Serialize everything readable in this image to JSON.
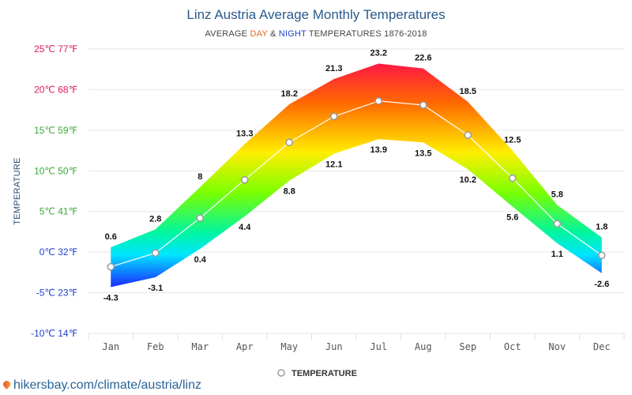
{
  "colors": {
    "day": "#e8661c",
    "night": "#1f3fcf",
    "title": "#2a5a8c",
    "grid": "#e6e6e6",
    "avg_line": "#ffffff"
  },
  "legend": {
    "label": "TEMPERATURE",
    "position": "bottom"
  },
  "credit": {
    "text": "hikersbay.com/climate/austria/linz",
    "icon": "location-pin-icon"
  },
  "chart_data": {
    "type": "area",
    "title": "Linz Austria Average Monthly Temperatures",
    "subtitle": {
      "prefix": "AVERAGE ",
      "day_word": "DAY",
      "middle": " & ",
      "night_word": "NIGHT",
      "suffix": " TEMPERATURES 1876-2018"
    },
    "ylabel": "TEMPERATURE",
    "xlabel": "",
    "ylim": [
      -10,
      25
    ],
    "grid": true,
    "y_ticks": [
      {
        "value": 25,
        "label": "25℃ 77℉",
        "color": "#e0185a"
      },
      {
        "value": 20,
        "label": "20℃ 68℉",
        "color": "#e0185a"
      },
      {
        "value": 15,
        "label": "15℃ 59℉",
        "color": "#3aaa35"
      },
      {
        "value": 10,
        "label": "10℃ 50℉",
        "color": "#3aaa35"
      },
      {
        "value": 5,
        "label": "5℃ 41℉",
        "color": "#3aaa35"
      },
      {
        "value": 0,
        "label": "0℃ 32℉",
        "color": "#1f3fcf"
      },
      {
        "value": -5,
        "label": "-5℃ 23℉",
        "color": "#1f3fcf"
      },
      {
        "value": -10,
        "label": "-10℃ 14℉",
        "color": "#1f3fcf"
      }
    ],
    "categories": [
      "Jan",
      "Feb",
      "Mar",
      "Apr",
      "May",
      "Jun",
      "Jul",
      "Aug",
      "Sep",
      "Oct",
      "Nov",
      "Dec"
    ],
    "series": [
      {
        "name": "DAY",
        "values": [
          0.6,
          2.8,
          8,
          13.3,
          18.2,
          21.3,
          23.2,
          22.6,
          18.5,
          12.5,
          5.8,
          1.8
        ]
      },
      {
        "name": "NIGHT",
        "values": [
          -4.3,
          -3.1,
          0.4,
          4.4,
          8.8,
          12.1,
          13.9,
          13.5,
          10.2,
          5.6,
          1.1,
          -2.6
        ]
      },
      {
        "name": "TEMPERATURE",
        "values": [
          -1.8,
          -0.1,
          4.2,
          8.9,
          13.5,
          16.7,
          18.6,
          18.1,
          14.4,
          9.1,
          3.5,
          -0.4
        ]
      }
    ]
  }
}
